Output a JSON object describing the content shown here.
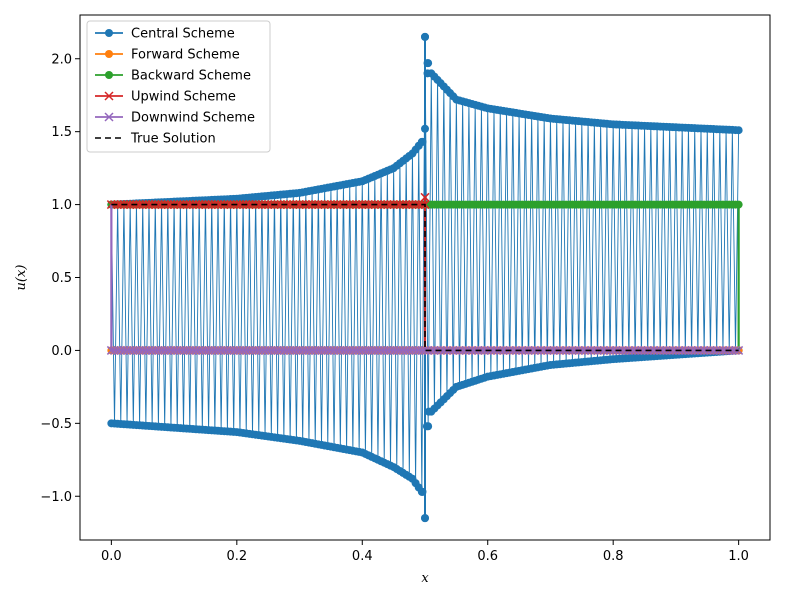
{
  "chart_data": {
    "type": "line",
    "title": "",
    "xlabel": "x",
    "ylabel": "u(x)",
    "xlim": [
      -0.05,
      1.05
    ],
    "ylim": [
      -1.3,
      2.3
    ],
    "xticks": [
      0.0,
      0.2,
      0.4,
      0.6,
      0.8,
      1.0
    ],
    "yticks": [
      -1.0,
      -0.5,
      0.0,
      0.5,
      1.0,
      1.5,
      2.0
    ],
    "xtick_labels": [
      "0.0",
      "0.2",
      "0.4",
      "0.6",
      "0.8",
      "1.0"
    ],
    "ytick_labels": [
      "−1.0",
      "−0.5",
      "0.0",
      "0.5",
      "1.0",
      "1.5",
      "2.0"
    ],
    "grid": false,
    "legend_position": "top-left",
    "series": [
      {
        "name": "Central Scheme",
        "color": "#1f77b4",
        "marker": "circle",
        "style": "oscillating",
        "description_points": [
          [
            0.0,
            1.0
          ],
          [
            0.0,
            -0.5
          ],
          [
            0.1,
            1.02
          ],
          [
            0.1,
            -0.53
          ],
          [
            0.2,
            1.04
          ],
          [
            0.2,
            -0.56
          ],
          [
            0.3,
            1.08
          ],
          [
            0.3,
            -0.62
          ],
          [
            0.4,
            1.16
          ],
          [
            0.4,
            -0.7
          ],
          [
            0.45,
            1.25
          ],
          [
            0.45,
            -0.8
          ],
          [
            0.48,
            1.35
          ],
          [
            0.48,
            -0.88
          ],
          [
            0.495,
            1.43
          ],
          [
            0.495,
            -0.97
          ],
          [
            0.5,
            2.15
          ],
          [
            0.5,
            -1.15
          ],
          [
            0.505,
            1.97
          ],
          [
            0.505,
            -0.52
          ],
          [
            0.51,
            1.9
          ],
          [
            0.51,
            -0.42
          ],
          [
            0.55,
            1.72
          ],
          [
            0.55,
            -0.25
          ],
          [
            0.6,
            1.66
          ],
          [
            0.6,
            -0.18
          ],
          [
            0.7,
            1.59
          ],
          [
            0.7,
            -0.1
          ],
          [
            0.8,
            1.55
          ],
          [
            0.8,
            -0.06
          ],
          [
            0.9,
            1.53
          ],
          [
            0.9,
            -0.03
          ],
          [
            1.0,
            1.51
          ],
          [
            1.0,
            0.0
          ]
        ]
      },
      {
        "name": "Forward Scheme",
        "color": "#ff7f0e",
        "marker": "circle",
        "points": [
          [
            0.0,
            0.0
          ],
          [
            0.5,
            0.0
          ],
          [
            1.0,
            0.0
          ]
        ]
      },
      {
        "name": "Backward Scheme",
        "color": "#2ca02c",
        "marker": "circle",
        "points": [
          [
            0.0,
            1.0
          ],
          [
            0.5,
            1.0
          ],
          [
            1.0,
            1.0
          ],
          [
            1.0,
            0.0
          ]
        ]
      },
      {
        "name": "Upwind Scheme",
        "color": "#d62728",
        "marker": "x",
        "points": [
          [
            0.0,
            1.0
          ],
          [
            0.5,
            1.0
          ],
          [
            0.5,
            1.05
          ],
          [
            0.5,
            0.0
          ],
          [
            1.0,
            0.0
          ]
        ]
      },
      {
        "name": "Downwind Scheme",
        "color": "#9467bd",
        "marker": "x",
        "points": [
          [
            0.0,
            1.0
          ],
          [
            0.0,
            0.0
          ],
          [
            1.0,
            0.0
          ]
        ]
      },
      {
        "name": "True Solution",
        "color": "#000000",
        "marker": "none",
        "dashed": true,
        "points": [
          [
            0.0,
            1.0
          ],
          [
            0.5,
            1.0
          ],
          [
            0.5,
            0.0
          ],
          [
            1.0,
            0.0
          ]
        ]
      }
    ]
  }
}
